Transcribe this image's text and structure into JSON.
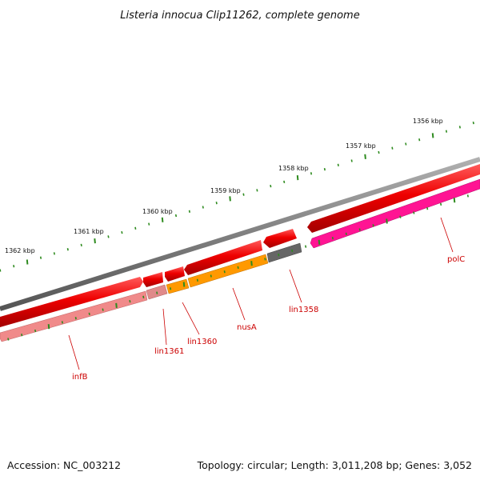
{
  "title": "Listeria innocua Clip11262, complete genome",
  "footer": {
    "accession": "Accession: NC_003212",
    "summary": "Topology: circular; Length: 3,011,208 bp; Genes: 3,052"
  },
  "colors": {
    "backbone": "#7a7a7a",
    "forward_cds": "#ee0000",
    "tick": "#2e8b1f",
    "label_line": "#cc0000",
    "infB": "#f08a8a",
    "lin1361": "#e08a8a",
    "lin1360": "#ff9900",
    "nusA": "#ff9900",
    "lin1358": "#666666",
    "polC": "#ff1493"
  },
  "scale_labels": [
    "1356 kbp",
    "1357 kbp",
    "1358 kbp",
    "1359 kbp",
    "1360 kbp",
    "1361 kbp",
    "1362 kbp"
  ],
  "gene_labels": {
    "infB": "infB",
    "lin1361": "lin1361",
    "lin1360": "lin1360",
    "nusA": "nusA",
    "lin1358": "lin1358",
    "polC": "polC"
  }
}
